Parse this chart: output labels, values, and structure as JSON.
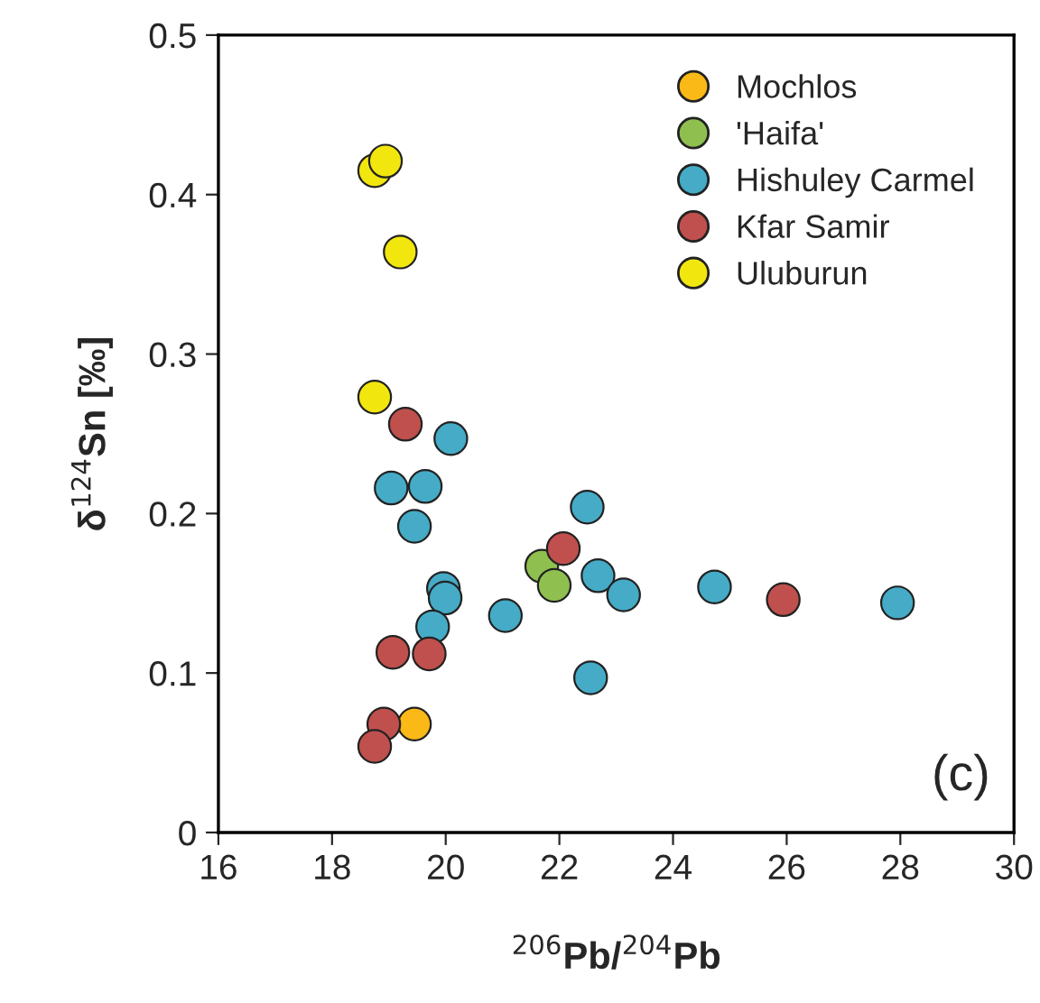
{
  "chart_data": {
    "type": "scatter",
    "xlabel": "$^{206}$Pb/$^{204}$Pb",
    "ylabel": "δ$^{124}$Sn [‰]",
    "xlim": [
      16,
      30
    ],
    "xticks": [
      16,
      18,
      20,
      22,
      24,
      26,
      28,
      30
    ],
    "ylim": [
      0,
      0.5
    ],
    "yticks": [
      0,
      0.1,
      0.2,
      0.3,
      0.4,
      0.5
    ],
    "grid": false,
    "legend": "top right",
    "marker": "circle",
    "annotations": [
      "(c)"
    ],
    "series": [
      {
        "name": "Mochlos",
        "color": "#fbb917",
        "x": [
          19.45
        ],
        "values": [
          0.068
        ]
      },
      {
        "name": "'Haifa'",
        "color": "#8fc04f",
        "x": [
          21.69,
          21.91
        ],
        "values": [
          0.167,
          0.155
        ]
      },
      {
        "name": "Hishuley Carmel",
        "color": "#45abc6",
        "x": [
          20.09,
          19.04,
          19.64,
          19.45,
          19.96,
          19.99,
          19.77,
          21.05,
          22.49,
          22.68,
          23.13,
          24.73,
          27.95,
          22.55
        ],
        "values": [
          0.247,
          0.216,
          0.217,
          0.192,
          0.153,
          0.147,
          0.129,
          0.136,
          0.204,
          0.161,
          0.149,
          0.154,
          0.144,
          0.097
        ]
      },
      {
        "name": "Kfar Samir",
        "color": "#c0504d",
        "x": [
          19.29,
          19.07,
          19.71,
          18.91,
          18.75,
          22.07,
          25.94
        ],
        "values": [
          0.256,
          0.113,
          0.112,
          0.068,
          0.054,
          0.178,
          0.146
        ]
      },
      {
        "name": "Uluburun",
        "color": "#f2e60f",
        "x": [
          18.75,
          18.94,
          19.2,
          18.75
        ],
        "values": [
          0.415,
          0.421,
          0.364,
          0.273
        ]
      }
    ]
  }
}
